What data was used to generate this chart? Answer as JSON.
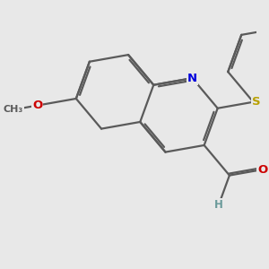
{
  "background_color": "#e8e8e8",
  "bond_color": "#5a5a5a",
  "bond_width": 1.6,
  "dbo": 0.055,
  "figsize": [
    3.0,
    3.0
  ],
  "dpi": 100,
  "colors": {
    "N": "#0000dd",
    "O": "#cc0000",
    "S": "#b8a000",
    "H": "#6a9a9a",
    "C": "#5a5a5a",
    "methoxy_text": "#5a5a5a"
  },
  "fontsize": 9.5
}
